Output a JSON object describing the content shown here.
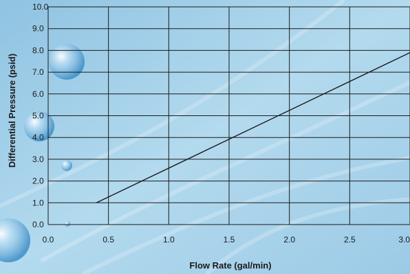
{
  "chart_data": {
    "type": "line",
    "title": "",
    "xlabel": "Flow Rate (gal/min)",
    "ylabel": "Differential Pressure (psid)",
    "xlim": [
      0.0,
      3.0
    ],
    "ylim": [
      0.0,
      10.0
    ],
    "x_ticks": [
      "0.0",
      "0.5",
      "1.0",
      "1.5",
      "2.0",
      "2.5",
      "3.0"
    ],
    "y_ticks": [
      "0.0",
      "1.0",
      "2.0",
      "3.0",
      "4.0",
      "5.0",
      "6.0",
      "7.0",
      "8.0",
      "9.0",
      "10.0"
    ],
    "grid": true,
    "series": [
      {
        "x": [
          0.4,
          3.0
        ],
        "y": [
          1.0,
          7.9
        ]
      }
    ]
  },
  "colors": {
    "background": "#a9d3ea",
    "grid": "#1a1a1a",
    "line": "#1a1a1a"
  }
}
